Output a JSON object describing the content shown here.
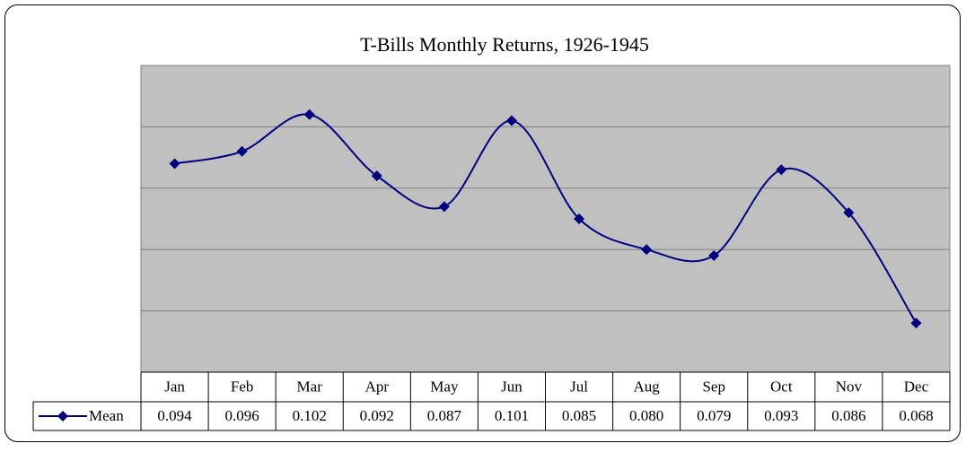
{
  "chart_data": {
    "type": "line",
    "title": "T-Bills Monthly Returns, 1926-1945",
    "categories": [
      "Jan",
      "Feb",
      "Mar",
      "Apr",
      "May",
      "Jun",
      "Jul",
      "Aug",
      "Sep",
      "Oct",
      "Nov",
      "Dec"
    ],
    "series": [
      {
        "name": "Mean",
        "color": "#000080",
        "values": [
          0.094,
          0.096,
          0.102,
          0.092,
          0.087,
          0.101,
          0.085,
          0.08,
          0.079,
          0.093,
          0.086,
          0.068
        ],
        "value_labels": [
          "0.094",
          "0.096",
          "0.102",
          "0.092",
          "0.087",
          "0.101",
          "0.085",
          "0.080",
          "0.079",
          "0.093",
          "0.086",
          "0.068"
        ]
      }
    ],
    "ylim": [
      0.06,
      0.11
    ],
    "yticks": [
      0.07,
      0.08,
      0.09,
      0.1
    ],
    "grid": true,
    "smooth": true,
    "plot_background": "#c0c0c0"
  }
}
